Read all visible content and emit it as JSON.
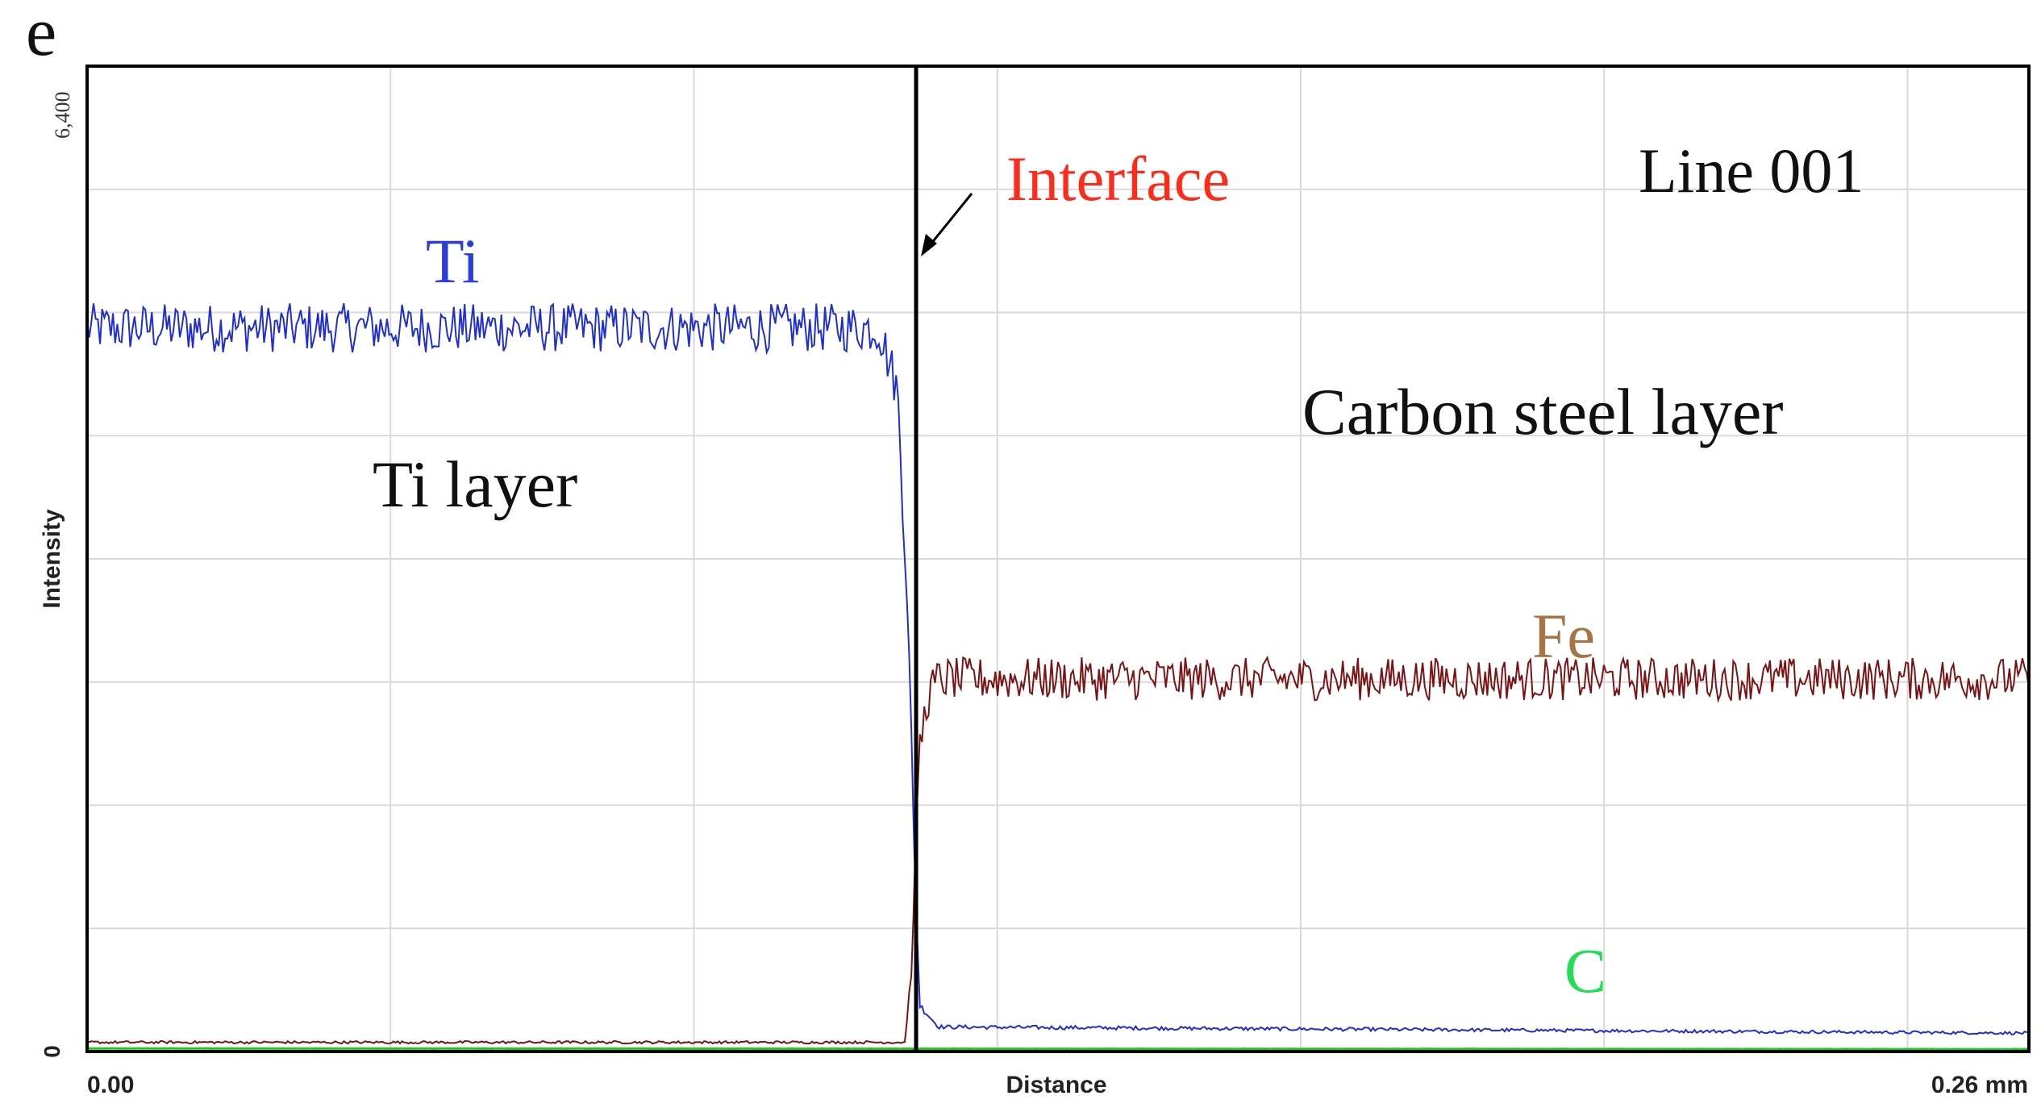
{
  "chart_data": {
    "type": "line",
    "panel_label": "e",
    "title": "",
    "xlabel": "Distance",
    "ylabel": "Intensity",
    "xlim": [
      0,
      0.26
    ],
    "ylim": [
      0,
      6400
    ],
    "x_tick_labels": [
      "0.00",
      "0.26 mm"
    ],
    "y_tick_labels": [
      "0",
      "6,400"
    ],
    "grid": true,
    "interface_x": 0.111,
    "annotations": {
      "interface": "Interface",
      "line_id": "Line 001",
      "ti_region": "Ti layer",
      "steel_region": "Carbon steel layer"
    },
    "series": [
      {
        "name": "Ti",
        "color": "#1f2fd0",
        "label_color": "#2b3fd8",
        "points": [
          [
            0,
            4700
          ],
          [
            0.106,
            4700
          ],
          [
            0.1085,
            4300
          ],
          [
            0.1098,
            3000
          ],
          [
            0.1108,
            1200
          ],
          [
            0.1115,
            300
          ],
          [
            0.114,
            160
          ],
          [
            0.26,
            120
          ]
        ]
      },
      {
        "name": "Fe",
        "color": "#7a1414",
        "label_color": "#a67447",
        "points": [
          [
            0,
            60
          ],
          [
            0.1095,
            60
          ],
          [
            0.1105,
            600
          ],
          [
            0.1113,
            1900
          ],
          [
            0.1125,
            2300
          ],
          [
            0.114,
            2420
          ],
          [
            0.26,
            2420
          ]
        ]
      },
      {
        "name": "C",
        "color": "#22c422",
        "label_color": "#22dd55",
        "points": [
          [
            0,
            20
          ],
          [
            0.26,
            15
          ]
        ]
      }
    ]
  }
}
